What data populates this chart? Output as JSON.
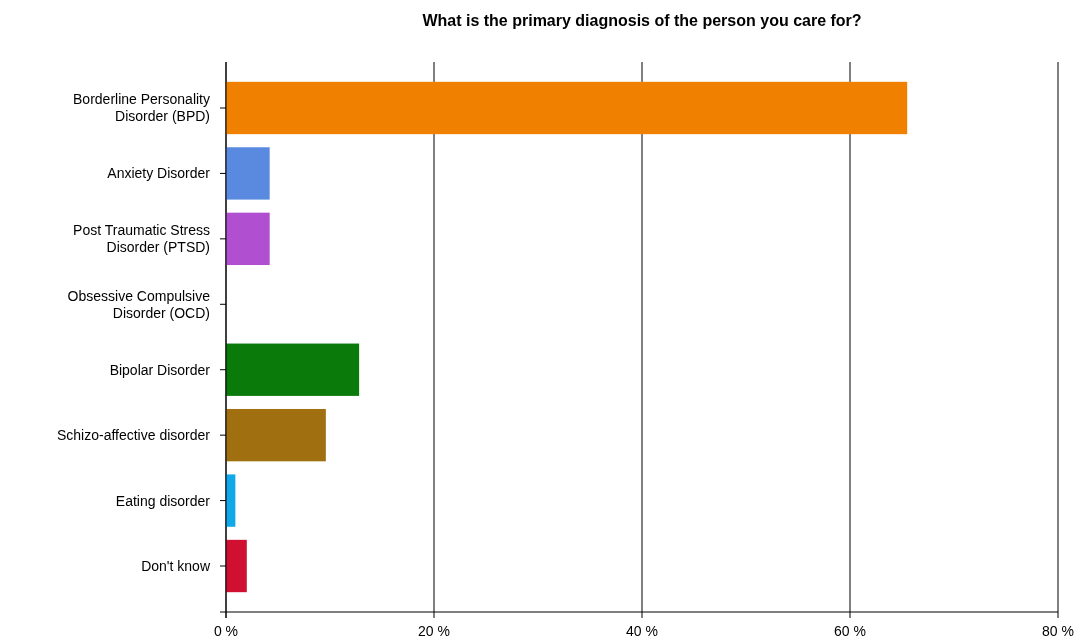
{
  "chart_data": {
    "type": "bar",
    "orientation": "horizontal",
    "title": "What is the primary diagnosis of the person you care for?",
    "categories": [
      "Borderline Personality Disorder (BPD)",
      "Anxiety Disorder",
      "Post Traumatic Stress Disorder (PTSD)",
      "Obsessive Compulsive Disorder (OCD)",
      "Bipolar Disorder",
      "Schizo-affective disorder",
      "Eating disorder",
      "Don't know"
    ],
    "values": [
      65.5,
      4.2,
      4.2,
      0,
      12.8,
      9.6,
      0.9,
      2.0
    ],
    "colors": [
      "#f08000",
      "#5a8ae0",
      "#b050d0",
      "#808080",
      "#0a7a0a",
      "#a07010",
      "#10a8e8",
      "#d01030"
    ],
    "xlim": [
      0,
      80
    ],
    "xticks": [
      {
        "value": 0,
        "label": "0 %"
      },
      {
        "value": 20,
        "label": "20 %"
      },
      {
        "value": 40,
        "label": "40 %"
      },
      {
        "value": 60,
        "label": "60 %"
      },
      {
        "value": 80,
        "label": "80 %"
      }
    ],
    "grid": "x"
  }
}
